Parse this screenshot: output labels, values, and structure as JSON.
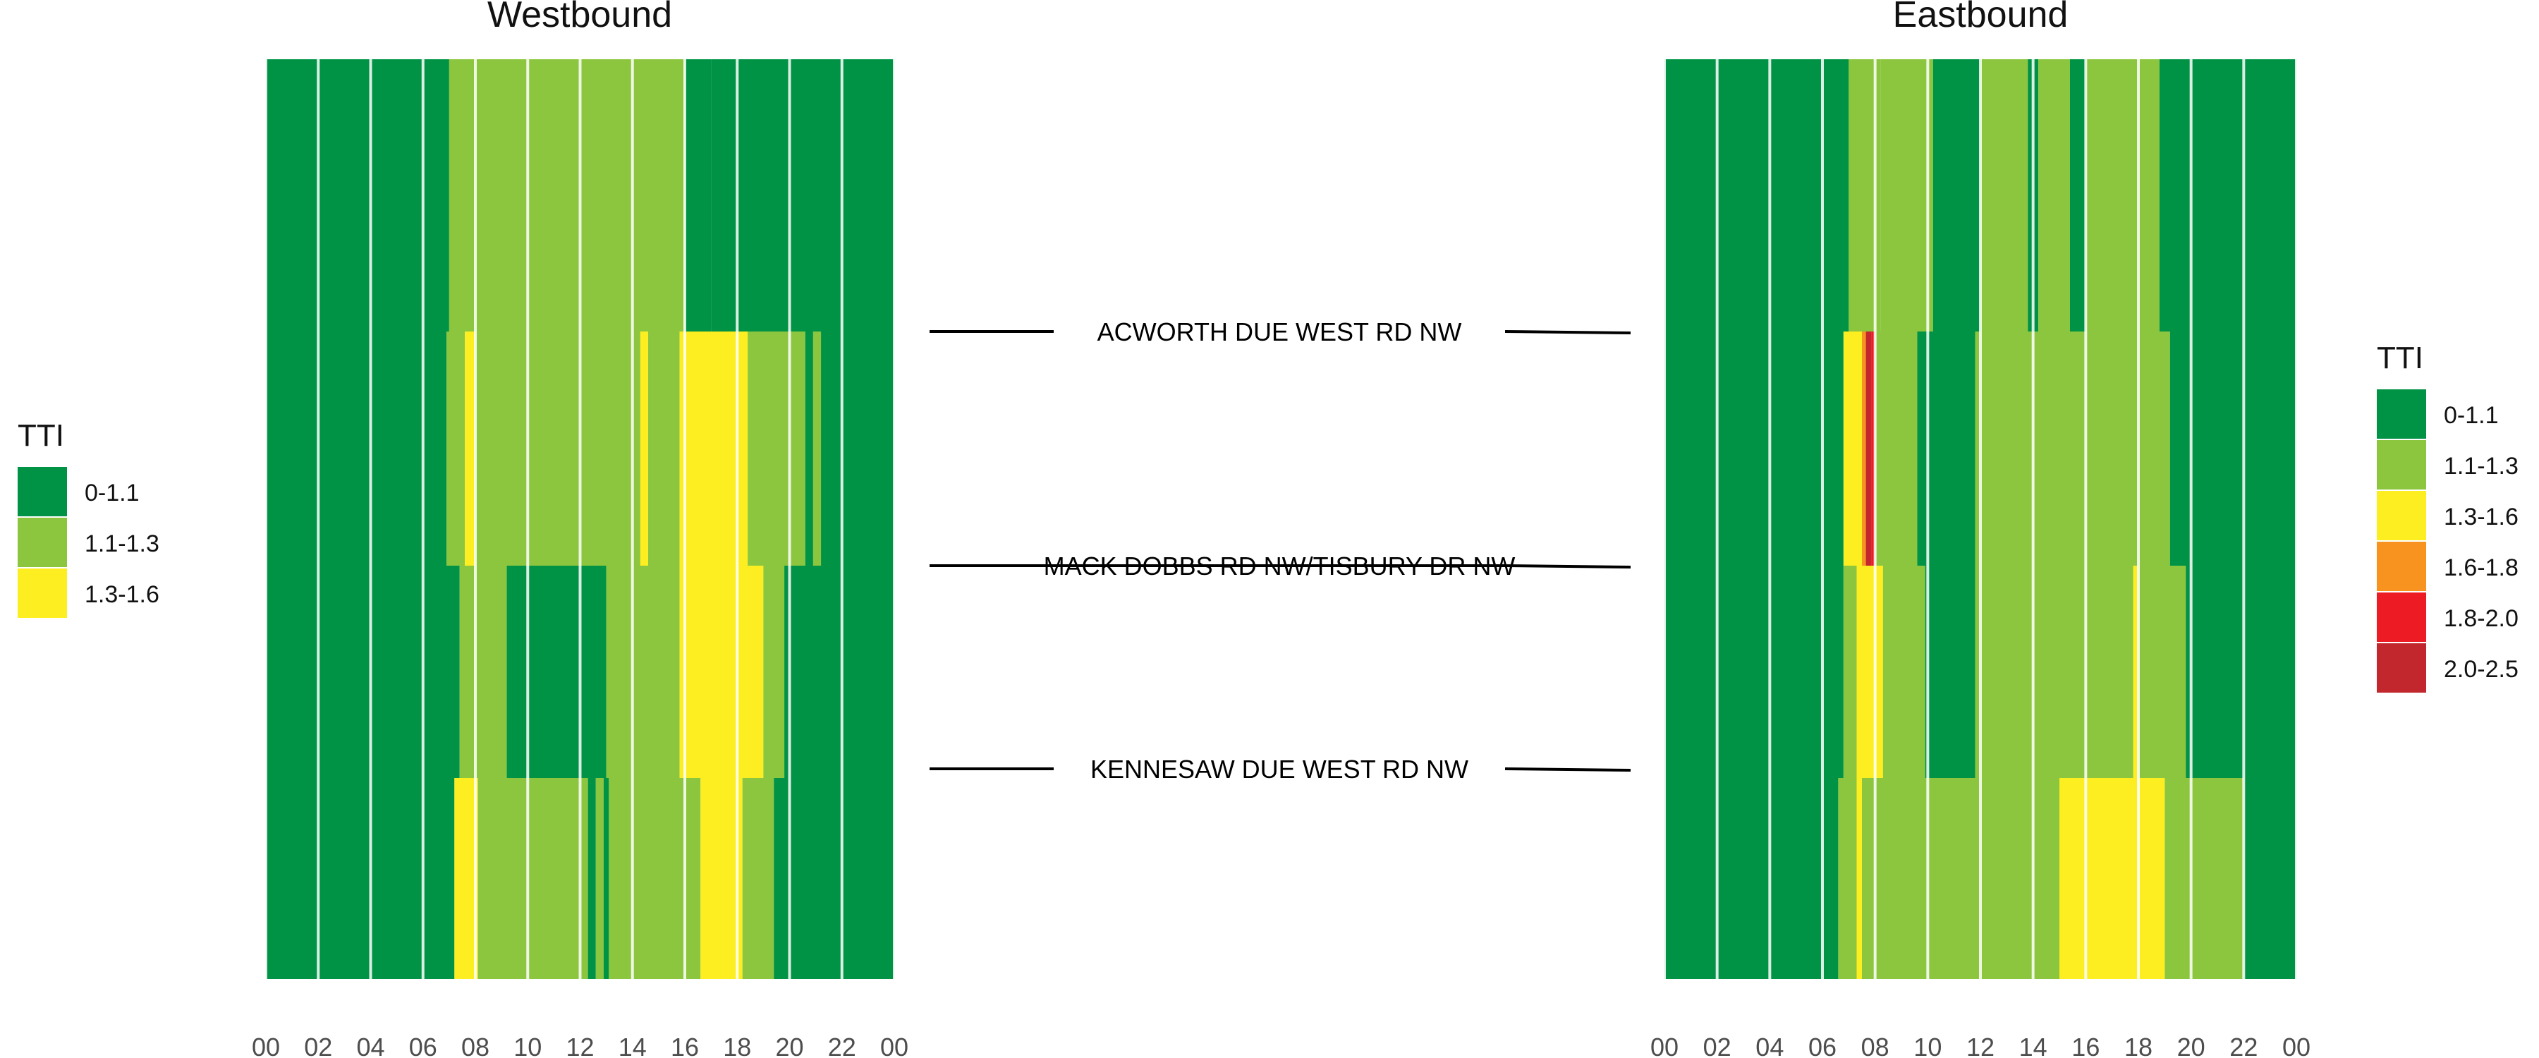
{
  "palette": {
    "0-1.1": "#009245",
    "1.1-1.3": "#8cc63f",
    "1.3-1.6": "#fcee21",
    "1.6-1.8": "#f7931e",
    "1.8-2.0": "#ed1c24",
    "2.0-2.5": "#c1272d"
  },
  "chart_data": [
    {
      "type": "heatmap",
      "title": "Westbound",
      "xlabel": "",
      "ylabel": "",
      "xlim": [
        0,
        24
      ],
      "x_ticks": [
        "00",
        "02",
        "04",
        "06",
        "08",
        "10",
        "12",
        "14",
        "16",
        "18",
        "20",
        "22",
        "00"
      ],
      "grid": true,
      "legend_position": "left",
      "legend": {
        "title": "TTI",
        "entries": [
          "0-1.1",
          "1.1-1.3",
          "1.3-1.6"
        ]
      },
      "road_segments": [
        {
          "name": "upstream of ACWORTH DUE WEST RD NW",
          "bins": [
            [
              0,
              7,
              "0-1.1"
            ],
            [
              7,
              16,
              "1.1-1.3"
            ],
            [
              16,
              17,
              "0-1.1"
            ],
            [
              17,
              24,
              "0-1.1"
            ]
          ]
        },
        {
          "name": "ACWORTH DUE WEST RD NW to MACK DOBBS RD NW/TISBURY DR NW",
          "bins": [
            [
              0,
              6.9,
              "0-1.1"
            ],
            [
              6.9,
              7.6,
              "1.1-1.3"
            ],
            [
              7.6,
              8,
              "1.3-1.6"
            ],
            [
              8,
              14.3,
              "1.1-1.3"
            ],
            [
              14.3,
              14.6,
              "1.3-1.6"
            ],
            [
              14.6,
              15.8,
              "1.1-1.3"
            ],
            [
              15.8,
              18.4,
              "1.3-1.6"
            ],
            [
              18.4,
              20.6,
              "1.1-1.3"
            ],
            [
              20.6,
              20.9,
              "0-1.1"
            ],
            [
              20.9,
              21.2,
              "1.1-1.3"
            ],
            [
              21.2,
              24,
              "0-1.1"
            ]
          ]
        },
        {
          "name": "MACK DOBBS RD NW/TISBURY DR NW to KENNESAW DUE WEST RD NW",
          "bins": [
            [
              0,
              7.4,
              "0-1.1"
            ],
            [
              7.4,
              9.2,
              "1.1-1.3"
            ],
            [
              9.2,
              13,
              "0-1.1"
            ],
            [
              13,
              15.8,
              "1.1-1.3"
            ],
            [
              15.8,
              19,
              "1.3-1.6"
            ],
            [
              19,
              19.8,
              "1.1-1.3"
            ],
            [
              19.8,
              24,
              "0-1.1"
            ]
          ]
        },
        {
          "name": "KENNESAW DUE WEST RD NW and downstream",
          "bins": [
            [
              0,
              7.2,
              "0-1.1"
            ],
            [
              7.2,
              8.1,
              "1.3-1.6"
            ],
            [
              8.1,
              12.3,
              "1.1-1.3"
            ],
            [
              12.3,
              12.6,
              "0-1.1"
            ],
            [
              12.6,
              12.9,
              "1.1-1.3"
            ],
            [
              12.9,
              13.1,
              "0-1.1"
            ],
            [
              13.1,
              16.6,
              "1.1-1.3"
            ],
            [
              16.6,
              18.2,
              "1.3-1.6"
            ],
            [
              18.2,
              19.4,
              "1.1-1.3"
            ],
            [
              19.4,
              24,
              "0-1.1"
            ]
          ]
        }
      ]
    },
    {
      "type": "heatmap",
      "title": "Eastbound",
      "xlabel": "",
      "ylabel": "",
      "xlim": [
        0,
        24
      ],
      "x_ticks": [
        "00",
        "02",
        "04",
        "06",
        "08",
        "10",
        "12",
        "14",
        "16",
        "18",
        "20",
        "22",
        "00"
      ],
      "grid": true,
      "legend_position": "right",
      "legend": {
        "title": "TTI",
        "entries": [
          "0-1.1",
          "1.1-1.3",
          "1.3-1.6",
          "1.6-1.8",
          "1.8-2.0",
          "2.0-2.5"
        ]
      },
      "road_segments": [
        {
          "name": "upstream of ACWORTH DUE WEST RD NW",
          "bins": [
            [
              0,
              7,
              "0-1.1"
            ],
            [
              7,
              8.2,
              "1.1-1.3"
            ],
            [
              8.2,
              10.2,
              "1.1-1.3"
            ],
            [
              10.2,
              12,
              "0-1.1"
            ],
            [
              12,
              13.8,
              "1.1-1.3"
            ],
            [
              13.8,
              14.2,
              "0-1.1"
            ],
            [
              14.2,
              15.4,
              "1.1-1.3"
            ],
            [
              15.4,
              16,
              "0-1.1"
            ],
            [
              16,
              18.8,
              "1.1-1.3"
            ],
            [
              18.8,
              24,
              "0-1.1"
            ]
          ]
        },
        {
          "name": "ACWORTH DUE WEST RD NW to MACK DOBBS RD NW/TISBURY DR NW",
          "bins": [
            [
              0,
              6.8,
              "0-1.1"
            ],
            [
              6.8,
              7.5,
              "1.3-1.6"
            ],
            [
              7.5,
              7.65,
              "1.6-1.8"
            ],
            [
              7.65,
              7.85,
              "2.0-2.5"
            ],
            [
              7.85,
              8,
              "1.8-2.0"
            ],
            [
              8,
              9.6,
              "1.1-1.3"
            ],
            [
              9.6,
              11.8,
              "0-1.1"
            ],
            [
              11.8,
              19.2,
              "1.1-1.3"
            ],
            [
              19.2,
              24,
              "0-1.1"
            ]
          ]
        },
        {
          "name": "MACK DOBBS RD NW/TISBURY DR NW to KENNESAW DUE WEST RD NW",
          "bins": [
            [
              0,
              6.8,
              "0-1.1"
            ],
            [
              6.8,
              7.3,
              "1.1-1.3"
            ],
            [
              7.3,
              8.3,
              "1.3-1.6"
            ],
            [
              8.3,
              9.9,
              "1.1-1.3"
            ],
            [
              9.9,
              11.8,
              "0-1.1"
            ],
            [
              11.8,
              17.8,
              "1.1-1.3"
            ],
            [
              17.8,
              18,
              "1.3-1.6"
            ],
            [
              18,
              19.8,
              "1.1-1.3"
            ],
            [
              19.8,
              24,
              "0-1.1"
            ]
          ]
        },
        {
          "name": "KENNESAW DUE WEST RD NW and downstream",
          "bins": [
            [
              0,
              6.6,
              "0-1.1"
            ],
            [
              6.6,
              7.3,
              "1.1-1.3"
            ],
            [
              7.3,
              7.5,
              "1.3-1.6"
            ],
            [
              7.5,
              15,
              "1.1-1.3"
            ],
            [
              15,
              19,
              "1.3-1.6"
            ],
            [
              19,
              22,
              "1.1-1.3"
            ],
            [
              22,
              24,
              "0-1.1"
            ]
          ]
        }
      ]
    }
  ],
  "road_labels": [
    "ACWORTH DUE WEST RD NW",
    "MACK DOBBS RD NW/TISBURY DR NW",
    "KENNESAW DUE WEST RD NW"
  ]
}
